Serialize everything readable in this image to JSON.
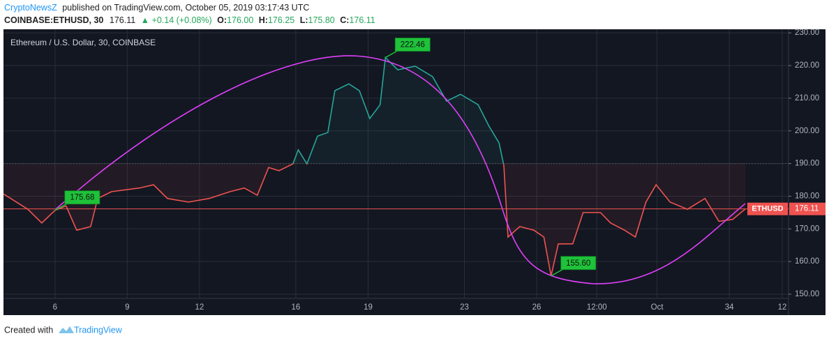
{
  "header": {
    "author": "CryptoNewsZ",
    "published": "published on TradingView.com, October 05, 2019 03:17:43 UTC",
    "symbol": "COINBASE:ETHUSD, 30",
    "last": "176.11",
    "change": "▲ +0.14 (+0.08%)",
    "ohlc": [
      {
        "label": "O:",
        "value": "176.00"
      },
      {
        "label": "H:",
        "value": "176.25"
      },
      {
        "label": "L:",
        "value": "175.80"
      },
      {
        "label": "C:",
        "value": "176.11"
      }
    ]
  },
  "footer": {
    "prefix": "Created with",
    "brand": "TradingView"
  },
  "chart_data": {
    "type": "line",
    "title": "Ethereum / U.S. Dollar, 30, COINBASE",
    "x": [
      3.86,
      4.87,
      5.45,
      6,
      6.46,
      6.9,
      7.48,
      7.77,
      8.35,
      9.5,
      10.09,
      10.67,
      11.54,
      12.4,
      13.27,
      13.86,
      14.4,
      14.87,
      15.3,
      15.88,
      16.1,
      16.46,
      16.9,
      17.33,
      17.62,
      18.2,
      18.64,
      19.07,
      19.5,
      19.72,
      20.23,
      20.96,
      21.68,
      22.26,
      22.84,
      23.57,
      24.01,
      24.44,
      24.64,
      24.81,
      25.3,
      25.88,
      26.3,
      26.6,
      26.9,
      27.5,
      27.93,
      28.65,
      29.07,
      29.65,
      30.1,
      30.54,
      30.96,
      31.54,
      32.26,
      32.99,
      33.57,
      34.14,
      34.67
    ],
    "series": [
      {
        "name": "ETHUSD",
        "values": [
          180.7,
          176,
          171.8,
          175.68,
          177,
          169.6,
          170.7,
          179.3,
          181.4,
          182.5,
          183.5,
          179.3,
          178.2,
          179.3,
          181.4,
          182.5,
          180.3,
          188.8,
          187.8,
          189.9,
          194.2,
          189.9,
          198.4,
          199.5,
          212.3,
          214.4,
          212.3,
          203.8,
          208,
          222.46,
          218.7,
          219.8,
          216.6,
          209.1,
          211.2,
          208,
          201.6,
          196.3,
          189.3,
          167.5,
          170.7,
          169.6,
          167.5,
          155.6,
          165.4,
          165.4,
          175,
          175,
          171.8,
          169.6,
          167.5,
          178.2,
          183.5,
          178.2,
          176,
          179.3,
          172.3,
          172.9,
          176.11
        ]
      }
    ],
    "baseline": 190,
    "above_color": "#26a69a",
    "below_color": "#ef5350",
    "last_price": 176.11,
    "xlim": [
      3.86,
      36.46
    ],
    "ylim": [
      143.6,
      231.1
    ],
    "xticks": [
      6,
      9,
      12,
      16,
      19,
      23,
      26,
      {
        "value": 28.5,
        "label": "12:00"
      },
      {
        "value": 31,
        "label": "Oct"
      },
      34,
      {
        "value": 36.2,
        "label": "12"
      }
    ],
    "yticks": [
      {
        "value": 150,
        "label": "150.00"
      },
      {
        "value": 160,
        "label": "160.00"
      },
      {
        "value": 170,
        "label": "170.00"
      },
      {
        "value": 180,
        "label": "180.00"
      },
      {
        "value": 190,
        "label": "190.00"
      },
      {
        "value": 200,
        "label": "200.00"
      },
      {
        "value": 210,
        "label": "210.00"
      },
      {
        "value": 220,
        "label": "220.00"
      },
      {
        "value": 230,
        "label": "230.00"
      }
    ],
    "grid": true,
    "annotations": [
      {
        "x": 6,
        "value": 175.68
      },
      {
        "x": 19.72,
        "value": 222.46
      },
      {
        "x": 26.6,
        "value": 155.6,
        "label": "155.60"
      }
    ]
  }
}
